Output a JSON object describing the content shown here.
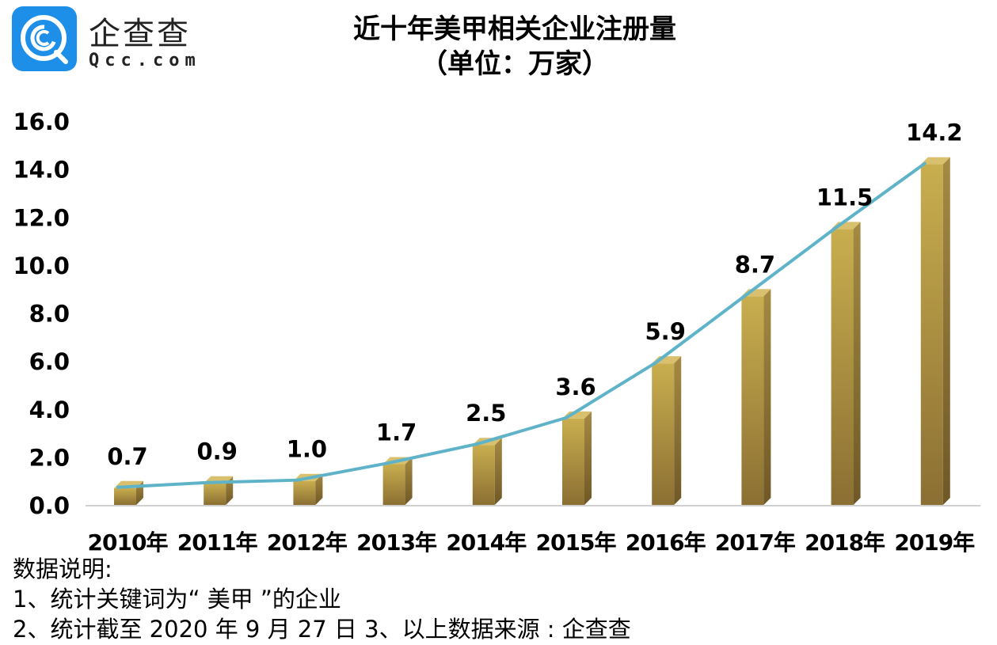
{
  "logo": {
    "brand_cn": "企查查",
    "brand_en": "Qcc.com",
    "icon": "qcc-logo-icon",
    "color": "#1e8fe9"
  },
  "title": {
    "line1": "近十年美甲相关企业注册量",
    "line2": "（单位：万家）"
  },
  "notes": {
    "heading": "数据说明:",
    "line1": "1、统计关键词为“ 美甲 ”的企业",
    "line2": "2、统计截至 2020 年 9 月 27 日  3、以上数据来源 : 企查查"
  },
  "colors": {
    "bar_front_top": "#c9ae4f",
    "bar_front_bottom": "#8b6f33",
    "bar_side": "#9a7f3c",
    "bar_top": "#d8c06e",
    "line": "#5fb3c8",
    "axis": "#d0d0d0"
  },
  "chart_data": {
    "type": "bar",
    "title": "近十年美甲相关企业注册量（单位：万家）",
    "xlabel": "",
    "ylabel": "",
    "categories": [
      "2010年",
      "2011年",
      "2012年",
      "2013年",
      "2014年",
      "2015年",
      "2016年",
      "2017年",
      "2018年",
      "2019年"
    ],
    "values": [
      0.7,
      0.9,
      1.0,
      1.7,
      2.5,
      3.6,
      5.9,
      8.7,
      11.5,
      14.2
    ],
    "data_labels": [
      "0.7",
      "0.9",
      "1.0",
      "1.7",
      "2.5",
      "3.6",
      "5.9",
      "8.7",
      "11.5",
      "14.2"
    ],
    "overlay_line": {
      "type": "line",
      "values": [
        0.7,
        0.9,
        1.0,
        1.7,
        2.5,
        3.6,
        5.9,
        8.7,
        11.5,
        14.2
      ]
    },
    "yticks": [
      "0.0",
      "2.0",
      "4.0",
      "6.0",
      "8.0",
      "10.0",
      "12.0",
      "14.0",
      "16.0"
    ],
    "ylim": [
      0,
      16
    ],
    "grid": false,
    "legend": "none"
  }
}
